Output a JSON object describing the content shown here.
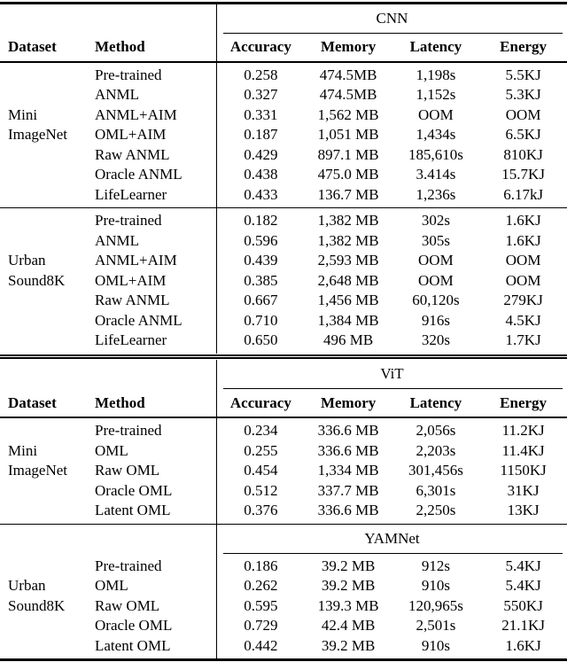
{
  "colors": {
    "background": "#ffffff",
    "text": "#000000",
    "rule": "#000000"
  },
  "column_headers": {
    "dataset": "Dataset",
    "method": "Method",
    "metrics": [
      "Accuracy",
      "Memory",
      "Latency",
      "Energy"
    ]
  },
  "tables": [
    {
      "segments": [
        {
          "model": "CNN",
          "show_headers": true,
          "sections": [
            {
              "dataset_name": "Mini ImageNet",
              "rows": [
                {
                  "method": "Pre-trained",
                  "values": [
                    "0.258",
                    "474.5MB",
                    "1,198s",
                    "5.5KJ"
                  ]
                },
                {
                  "method": "ANML",
                  "values": [
                    "0.327",
                    "474.5MB",
                    "1,152s",
                    "5.3KJ"
                  ]
                },
                {
                  "dataset": "Mini",
                  "method": "ANML+AIM",
                  "values": [
                    "0.331",
                    "1,562 MB",
                    "OOM",
                    "OOM"
                  ]
                },
                {
                  "dataset": "ImageNet",
                  "method": "OML+AIM",
                  "values": [
                    "0.187",
                    "1,051 MB",
                    "1,434s",
                    "6.5KJ"
                  ]
                },
                {
                  "method": "Raw ANML",
                  "values": [
                    "0.429",
                    "897.1 MB",
                    "185,610s",
                    "810KJ"
                  ]
                },
                {
                  "method": "Oracle ANML",
                  "values": [
                    "0.438",
                    "475.0 MB",
                    "3.414s",
                    "15.7KJ"
                  ]
                },
                {
                  "method": "LifeLearner",
                  "values": [
                    "0.433",
                    "136.7 MB",
                    "1,236s",
                    "6.17kJ"
                  ]
                }
              ]
            },
            {
              "dataset_name": "Urban Sound8K",
              "rows": [
                {
                  "method": "Pre-trained",
                  "values": [
                    "0.182",
                    "1,382 MB",
                    "302s",
                    "1.6KJ"
                  ]
                },
                {
                  "method": "ANML",
                  "values": [
                    "0.596",
                    "1,382 MB",
                    "305s",
                    "1.6KJ"
                  ]
                },
                {
                  "dataset": "Urban",
                  "method": "ANML+AIM",
                  "values": [
                    "0.439",
                    "2,593 MB",
                    "OOM",
                    "OOM"
                  ]
                },
                {
                  "dataset": "Sound8K",
                  "method": "OML+AIM",
                  "values": [
                    "0.385",
                    "2,648 MB",
                    "OOM",
                    "OOM"
                  ]
                },
                {
                  "method": "Raw ANML",
                  "values": [
                    "0.667",
                    "1,456 MB",
                    "60,120s",
                    "279KJ"
                  ]
                },
                {
                  "method": "Oracle ANML",
                  "values": [
                    "0.710",
                    "1,384 MB",
                    "916s",
                    "4.5KJ"
                  ]
                },
                {
                  "method": "LifeLearner",
                  "values": [
                    "0.650",
                    "496 MB",
                    "320s",
                    "1.7KJ"
                  ]
                }
              ]
            }
          ]
        }
      ]
    },
    {
      "segments": [
        {
          "model": "ViT",
          "show_headers": true,
          "sections": [
            {
              "dataset_name": "Mini ImageNet",
              "rows": [
                {
                  "method": "Pre-trained",
                  "values": [
                    "0.234",
                    "336.6 MB",
                    "2,056s",
                    "11.2KJ"
                  ]
                },
                {
                  "dataset": "Mini",
                  "method": "OML",
                  "values": [
                    "0.255",
                    "336.6 MB",
                    "2,203s",
                    "11.4KJ"
                  ]
                },
                {
                  "dataset": "ImageNet",
                  "method": "Raw OML",
                  "values": [
                    "0.454",
                    "1,334 MB",
                    "301,456s",
                    "1150KJ"
                  ]
                },
                {
                  "method": "Oracle OML",
                  "values": [
                    "0.512",
                    "337.7 MB",
                    "6,301s",
                    "31KJ"
                  ]
                },
                {
                  "method": "Latent OML",
                  "values": [
                    "0.376",
                    "336.6 MB",
                    "2,250s",
                    "13KJ"
                  ]
                }
              ]
            }
          ]
        },
        {
          "model": "YAMNet",
          "show_headers": false,
          "sections": [
            {
              "dataset_name": "Urban Sound8K",
              "rows": [
                {
                  "method": "Pre-trained",
                  "values": [
                    "0.186",
                    "39.2 MB",
                    "912s",
                    "5.4KJ"
                  ]
                },
                {
                  "dataset": "Urban",
                  "method": "OML",
                  "values": [
                    "0.262",
                    "39.2 MB",
                    "910s",
                    "5.4KJ"
                  ]
                },
                {
                  "dataset": "Sound8K",
                  "method": "Raw OML",
                  "values": [
                    "0.595",
                    "139.3 MB",
                    "120,965s",
                    "550KJ"
                  ]
                },
                {
                  "method": "Oracle OML",
                  "values": [
                    "0.729",
                    "42.4 MB",
                    "2,501s",
                    "21.1KJ"
                  ]
                },
                {
                  "method": "Latent OML",
                  "values": [
                    "0.442",
                    "39.2 MB",
                    "910s",
                    "1.6KJ"
                  ]
                }
              ]
            }
          ]
        }
      ]
    }
  ]
}
